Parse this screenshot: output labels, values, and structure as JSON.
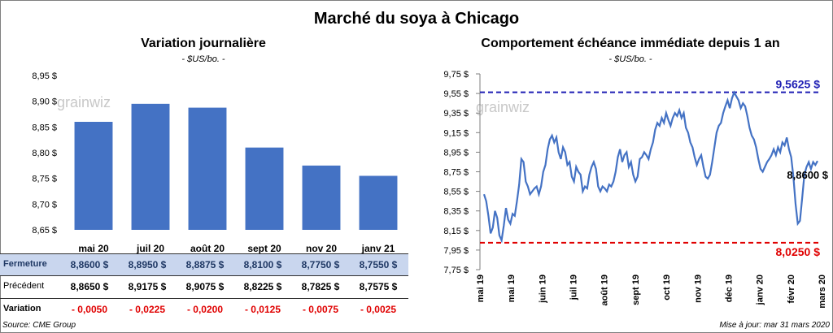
{
  "title": "Marché du soya à Chicago",
  "left": {
    "subtitle": "Variation  journalière",
    "unit": "- $US/bo. -",
    "watermark": "grainwiz",
    "chart_data": {
      "type": "bar",
      "categories": [
        "mai 20",
        "juil 20",
        "août 20",
        "sept 20",
        "nov 20",
        "janv 21"
      ],
      "values": [
        8.86,
        8.895,
        8.8875,
        8.81,
        8.775,
        8.755
      ],
      "ylim": [
        8.65,
        8.95
      ],
      "yticks": [
        "8,65 $",
        "8,70 $",
        "8,75 $",
        "8,80 $",
        "8,85 $",
        "8,90 $",
        "8,95 $"
      ],
      "color": "#4472c4",
      "grid": false
    },
    "table": {
      "rows": [
        {
          "label": "Fermeture",
          "cells": [
            "8,8600  $",
            "8,8950  $",
            "8,8875  $",
            "8,8100  $",
            "8,7750  $",
            "8,7550  $"
          ]
        },
        {
          "label": "Précédent",
          "cells": [
            "8,8650  $",
            "8,9175  $",
            "8,9075  $",
            "8,8225  $",
            "8,7825  $",
            "8,7575  $"
          ]
        },
        {
          "label": "Variation",
          "cells": [
            "- 0,0050",
            "- 0,0225",
            "- 0,0200",
            "- 0,0125",
            "- 0,0075",
            "- 0,0025"
          ]
        }
      ]
    },
    "source": "Source: CME Group"
  },
  "right": {
    "subtitle": "Comportement  échéance immédiate depuis 1 an",
    "unit": "- $US/bo. -",
    "watermark": "grainwiz",
    "chart_data": {
      "type": "line",
      "ylim": [
        7.75,
        9.75
      ],
      "yticks": [
        "7,75 $",
        "7,95 $",
        "8,15 $",
        "8,35 $",
        "8,55 $",
        "8,75 $",
        "8,95 $",
        "9,15 $",
        "9,35 $",
        "9,55 $",
        "9,75 $"
      ],
      "xticks": [
        "mai 19",
        "mai 19",
        "juin 19",
        "juil 19",
        "août 19",
        "sept 19",
        "oct 19",
        "nov 19",
        "déc 19",
        "janv 20",
        "févr 20",
        "mars 20"
      ],
      "series": [
        {
          "values": [
            8.52,
            8.45,
            8.3,
            8.12,
            8.18,
            8.35,
            8.28,
            8.1,
            8.05,
            8.2,
            8.38,
            8.26,
            8.22,
            8.32,
            8.3,
            8.45,
            8.62,
            8.88,
            8.85,
            8.65,
            8.6,
            8.52,
            8.55,
            8.58,
            8.6,
            8.52,
            8.6,
            8.75,
            8.82,
            8.98,
            9.08,
            9.12,
            9.05,
            9.1,
            8.95,
            8.88,
            9.0,
            8.95,
            8.82,
            8.85,
            8.7,
            8.65,
            8.8,
            8.75,
            8.72,
            8.55,
            8.6,
            8.58,
            8.72,
            8.8,
            8.85,
            8.78,
            8.6,
            8.55,
            8.6,
            8.58,
            8.55,
            8.62,
            8.6,
            8.65,
            8.75,
            8.9,
            8.98,
            8.85,
            8.92,
            8.95,
            8.8,
            8.85,
            8.72,
            8.65,
            8.7,
            8.88,
            8.9,
            8.95,
            8.92,
            8.88,
            8.98,
            9.05,
            9.18,
            9.25,
            9.22,
            9.3,
            9.25,
            9.35,
            9.28,
            9.22,
            9.3,
            9.35,
            9.32,
            9.38,
            9.3,
            9.35,
            9.2,
            9.15,
            9.05,
            9.0,
            8.9,
            8.82,
            8.88,
            8.92,
            8.8,
            8.7,
            8.68,
            8.72,
            8.85,
            9.0,
            9.15,
            9.22,
            9.25,
            9.35,
            9.42,
            9.48,
            9.4,
            9.5,
            9.56,
            9.52,
            9.48,
            9.4,
            9.45,
            9.42,
            9.32,
            9.2,
            9.12,
            9.08,
            9.0,
            8.88,
            8.78,
            8.75,
            8.8,
            8.85,
            8.88,
            8.92,
            8.98,
            8.92,
            9.0,
            8.95,
            9.05,
            9.02,
            9.1,
            8.98,
            8.9,
            8.7,
            8.42,
            8.22,
            8.25,
            8.48,
            8.72,
            8.8,
            8.85,
            8.78,
            8.85,
            8.82,
            8.86
          ]
        }
      ],
      "reference_lines": [
        {
          "value": 9.5625,
          "label": "9,5625  $",
          "color": "#1f1fb4"
        },
        {
          "value": 8.025,
          "label": "8,0250  $",
          "color": "#e00000"
        }
      ],
      "last_label": "8,8600 $",
      "color": "#4472c4",
      "grid": false
    },
    "update": "Mise à jour: mar 31 mars 2020"
  }
}
